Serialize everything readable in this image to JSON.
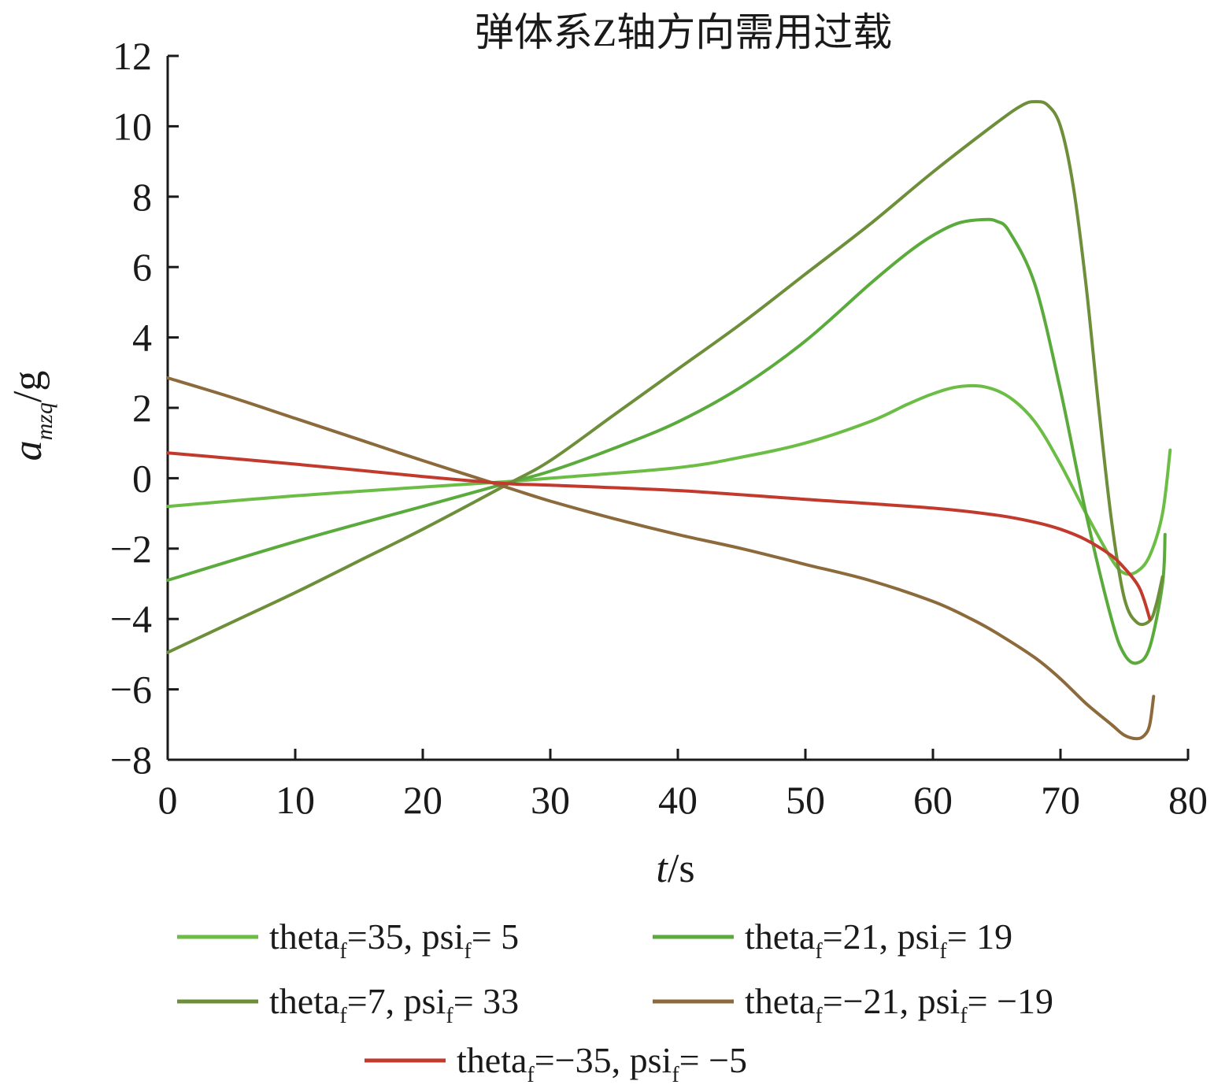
{
  "chart_data": {
    "type": "line",
    "title": "弹体系Z轴方向需用过载",
    "xlabel": {
      "var": "t",
      "unit": "/s"
    },
    "ylabel": {
      "var": "a",
      "sub": "mzq",
      "unit": "/g"
    },
    "xlim": [
      0,
      80
    ],
    "ylim": [
      -8,
      12
    ],
    "xticks": [
      0,
      10,
      20,
      30,
      40,
      50,
      60,
      70,
      80
    ],
    "yticks": [
      -8,
      -6,
      -4,
      -2,
      0,
      2,
      4,
      6,
      8,
      10,
      12
    ],
    "ytick_labels": [
      "−8",
      "−6",
      "−4",
      "−2",
      "0",
      "2",
      "4",
      "6",
      "8",
      "10",
      "12"
    ],
    "grid": false,
    "legend_position": "bottom",
    "series": [
      {
        "label": {
          "p1": "theta",
          "s1": "f",
          "p2": "=35, psi",
          "s2": "f",
          "p3": "= 5"
        },
        "color": "#6cbd45",
        "x": [
          0,
          10,
          20,
          26.5,
          30,
          40,
          45,
          50,
          55,
          58,
          60,
          62,
          64,
          66,
          68,
          70,
          72,
          74,
          75,
          76,
          77,
          78,
          78.6
        ],
        "y": [
          -0.8,
          -0.5,
          -0.25,
          -0.1,
          0.0,
          0.3,
          0.6,
          1.0,
          1.6,
          2.1,
          2.4,
          2.6,
          2.6,
          2.3,
          1.6,
          0.4,
          -1.0,
          -2.3,
          -2.7,
          -2.65,
          -2.2,
          -1.0,
          0.8
        ]
      },
      {
        "label": {
          "p1": "theta",
          "s1": "f",
          "p2": "=21, psi",
          "s2": "f",
          "p3": "= 19"
        },
        "color": "#5aaa3c",
        "x": [
          0,
          10,
          20,
          26.5,
          30,
          35,
          40,
          45,
          50,
          55,
          58,
          60,
          62,
          64,
          65,
          66,
          68,
          70,
          72,
          74,
          75,
          76,
          77,
          78,
          78.2
        ],
        "y": [
          -2.9,
          -1.8,
          -0.8,
          -0.15,
          0.2,
          0.85,
          1.6,
          2.6,
          3.9,
          5.5,
          6.4,
          6.9,
          7.25,
          7.35,
          7.3,
          7.0,
          5.5,
          2.5,
          -1.0,
          -4.0,
          -5.0,
          -5.25,
          -4.8,
          -3.0,
          -1.6
        ]
      },
      {
        "label": {
          "p1": "theta",
          "s1": "f",
          "p2": "=7, psi",
          "s2": "f",
          "p3": "= 33"
        },
        "color": "#6e8f3a",
        "x": [
          0,
          5,
          10,
          15,
          20,
          26.5,
          30,
          35,
          40,
          45,
          50,
          55,
          60,
          65,
          67,
          68,
          69,
          70,
          71,
          72,
          73,
          74,
          75,
          76,
          77,
          77.5,
          78
        ],
        "y": [
          -4.95,
          -4.1,
          -3.25,
          -2.35,
          -1.45,
          -0.2,
          0.5,
          1.8,
          3.1,
          4.4,
          5.8,
          7.2,
          8.7,
          10.1,
          10.6,
          10.7,
          10.6,
          10.0,
          8.3,
          5.5,
          2.0,
          -1.2,
          -3.4,
          -4.1,
          -4.05,
          -3.6,
          -2.8
        ]
      },
      {
        "label": {
          "p1": "theta",
          "s1": "f",
          "p2": "=−21, psi",
          "s2": "f",
          "p3": "= −19"
        },
        "color": "#8c6a3b",
        "x": [
          0,
          5,
          10,
          15,
          20,
          26.5,
          30,
          35,
          40,
          45,
          50,
          55,
          60,
          63,
          65,
          68,
          70,
          72,
          74,
          75,
          76,
          76.6,
          77,
          77.3
        ],
        "y": [
          2.85,
          2.3,
          1.7,
          1.1,
          0.5,
          -0.25,
          -0.65,
          -1.15,
          -1.6,
          -2.0,
          -2.45,
          -2.9,
          -3.5,
          -4.0,
          -4.4,
          -5.1,
          -5.7,
          -6.4,
          -7.0,
          -7.3,
          -7.4,
          -7.3,
          -7.0,
          -6.2
        ]
      },
      {
        "label": {
          "p1": "theta",
          "s1": "f",
          "p2": "=−35, psi",
          "s2": "f",
          "p3": "= −5"
        },
        "color": "#c23a2e",
        "x": [
          0,
          10,
          20,
          26.5,
          30,
          40,
          50,
          60,
          65,
          68,
          70,
          72,
          74,
          75,
          76,
          76.5,
          77
        ],
        "y": [
          0.72,
          0.4,
          0.05,
          -0.15,
          -0.2,
          -0.35,
          -0.6,
          -0.85,
          -1.05,
          -1.25,
          -1.45,
          -1.75,
          -2.2,
          -2.55,
          -3.0,
          -3.4,
          -4.0
        ]
      }
    ]
  }
}
